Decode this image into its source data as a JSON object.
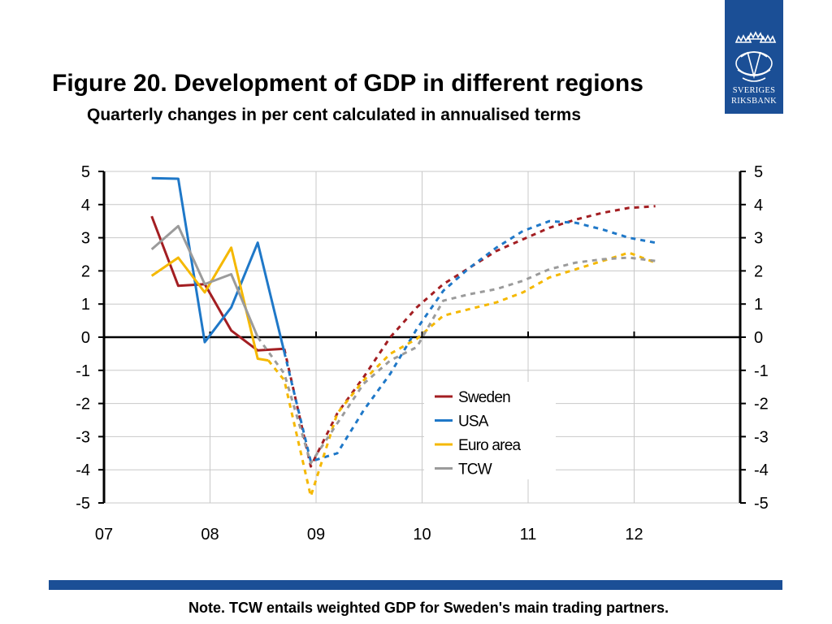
{
  "title": "Figure 20. Development of GDP in different regions",
  "subtitle": "Quarterly changes in per cent calculated in annualised terms",
  "logo": {
    "line1": "SVERIGES",
    "line2": "RIKSBANK",
    "color": "#1b4f96"
  },
  "note": "Note. TCW entails weighted GDP for Sweden's main trading partners.",
  "chart_data": {
    "type": "line",
    "x_ticks": [
      "07",
      "08",
      "09",
      "10",
      "11",
      "12"
    ],
    "x_tick_values": [
      2007,
      2008,
      2009,
      2010,
      2011,
      2012
    ],
    "xlim": [
      2007,
      2013
    ],
    "ylim": [
      -5,
      5
    ],
    "y_ticks": [
      "5",
      "4",
      "3",
      "2",
      "1",
      "0",
      "-1",
      "-2",
      "-3",
      "-4",
      "-5"
    ],
    "y_tick_values": [
      5,
      4,
      3,
      2,
      1,
      0,
      -1,
      -2,
      -3,
      -4,
      -5
    ],
    "grid": true,
    "legend_position": "lower-center",
    "series": [
      {
        "name": "Sweden",
        "color": "#a31e22",
        "solid": [
          [
            2007.45,
            3.65
          ],
          [
            2007.7,
            1.55
          ],
          [
            2007.95,
            1.6
          ],
          [
            2008.2,
            0.2
          ],
          [
            2008.45,
            -0.4
          ],
          [
            2008.7,
            -0.35
          ]
        ],
        "dashed": [
          [
            2008.7,
            -0.35
          ],
          [
            2008.95,
            -3.9
          ],
          [
            2009.2,
            -2.3
          ],
          [
            2009.45,
            -1.2
          ],
          [
            2009.7,
            0.0
          ],
          [
            2009.95,
            0.9
          ],
          [
            2010.2,
            1.6
          ],
          [
            2010.45,
            2.1
          ],
          [
            2010.7,
            2.6
          ],
          [
            2010.95,
            2.95
          ],
          [
            2011.2,
            3.3
          ],
          [
            2011.45,
            3.55
          ],
          [
            2011.7,
            3.75
          ],
          [
            2011.95,
            3.9
          ],
          [
            2012.2,
            3.95
          ]
        ]
      },
      {
        "name": "USA",
        "color": "#1f78c8",
        "solid": [
          [
            2007.45,
            4.8
          ],
          [
            2007.7,
            4.78
          ],
          [
            2007.95,
            -0.15
          ],
          [
            2008.2,
            0.9
          ],
          [
            2008.45,
            2.85
          ],
          [
            2008.7,
            -0.45
          ]
        ],
        "dashed": [
          [
            2008.7,
            -0.45
          ],
          [
            2008.95,
            -3.75
          ],
          [
            2009.2,
            -3.5
          ],
          [
            2009.45,
            -2.2
          ],
          [
            2009.7,
            -1.1
          ],
          [
            2009.95,
            0.25
          ],
          [
            2010.2,
            1.4
          ],
          [
            2010.45,
            2.1
          ],
          [
            2010.7,
            2.7
          ],
          [
            2010.95,
            3.2
          ],
          [
            2011.2,
            3.5
          ],
          [
            2011.45,
            3.45
          ],
          [
            2011.7,
            3.25
          ],
          [
            2011.95,
            3.0
          ],
          [
            2012.2,
            2.85
          ]
        ]
      },
      {
        "name": "Euro area",
        "color": "#f5b800",
        "solid": [
          [
            2007.45,
            1.85
          ],
          [
            2007.7,
            2.4
          ],
          [
            2007.95,
            1.35
          ],
          [
            2008.2,
            2.7
          ],
          [
            2008.45,
            -0.65
          ],
          [
            2008.55,
            -0.7
          ]
        ],
        "dashed": [
          [
            2008.55,
            -0.7
          ],
          [
            2008.7,
            -1.3
          ],
          [
            2008.95,
            -4.8
          ],
          [
            2009.2,
            -2.3
          ],
          [
            2009.45,
            -1.3
          ],
          [
            2009.7,
            -0.5
          ],
          [
            2009.95,
            -0.05
          ],
          [
            2010.2,
            0.65
          ],
          [
            2010.45,
            0.85
          ],
          [
            2010.7,
            1.05
          ],
          [
            2010.95,
            1.35
          ],
          [
            2011.2,
            1.8
          ],
          [
            2011.45,
            2.05
          ],
          [
            2011.7,
            2.3
          ],
          [
            2011.95,
            2.55
          ],
          [
            2012.2,
            2.25
          ]
        ]
      },
      {
        "name": "TCW",
        "color": "#9b9b9b",
        "solid": [
          [
            2007.45,
            2.65
          ],
          [
            2007.7,
            3.35
          ],
          [
            2007.95,
            1.6
          ],
          [
            2008.2,
            1.9
          ],
          [
            2008.45,
            0.0
          ]
        ],
        "dashed": [
          [
            2008.45,
            0.0
          ],
          [
            2008.7,
            -1.1
          ],
          [
            2008.95,
            -3.8
          ],
          [
            2009.2,
            -2.6
          ],
          [
            2009.45,
            -1.4
          ],
          [
            2009.7,
            -0.7
          ],
          [
            2009.95,
            -0.3
          ],
          [
            2010.2,
            1.1
          ],
          [
            2010.45,
            1.3
          ],
          [
            2010.7,
            1.45
          ],
          [
            2010.95,
            1.7
          ],
          [
            2011.2,
            2.05
          ],
          [
            2011.45,
            2.25
          ],
          [
            2011.7,
            2.35
          ],
          [
            2011.95,
            2.4
          ],
          [
            2012.2,
            2.3
          ]
        ]
      }
    ]
  }
}
